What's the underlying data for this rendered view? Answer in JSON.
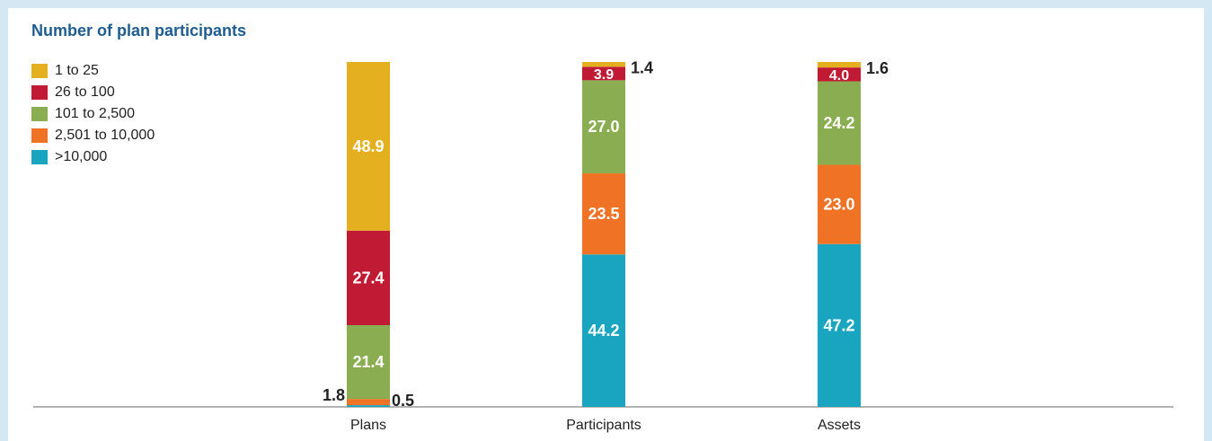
{
  "chart_data": {
    "type": "bar",
    "stacked": true,
    "title": "Number of plan participants",
    "categories": [
      "Plans",
      "Participants",
      "Assets"
    ],
    "ylim": [
      0,
      100
    ],
    "legend_position": "top-left",
    "grid": false,
    "series": [
      {
        "name": ">10,000",
        "color": "#19a5bf",
        "values": [
          0.5,
          44.2,
          47.2
        ],
        "labels": [
          "0.5",
          "44.2",
          "47.2"
        ]
      },
      {
        "name": "2,501 to 10,000",
        "color": "#f07225",
        "values": [
          1.8,
          23.5,
          23.0
        ],
        "labels": [
          "1.8",
          "23.5",
          "23.0"
        ]
      },
      {
        "name": "101 to 2,500",
        "color": "#89ad50",
        "values": [
          21.4,
          27.0,
          24.2
        ],
        "labels": [
          "21.4",
          "27.0",
          "24.2"
        ]
      },
      {
        "name": "26 to 100",
        "color": "#c01a35",
        "values": [
          27.4,
          3.9,
          4.0
        ],
        "labels": [
          "27.4",
          "3.9",
          "4.0"
        ]
      },
      {
        "name": "1 to 25",
        "color": "#e4b020",
        "values": [
          48.9,
          1.4,
          1.6
        ],
        "labels": [
          "48.9",
          "1.4",
          "1.6"
        ]
      }
    ]
  },
  "legend_items": [
    {
      "label": "1 to 25",
      "color": "#e4b020"
    },
    {
      "label": "26 to 100",
      "color": "#c01a35"
    },
    {
      "label": "101 to 2,500",
      "color": "#89ad50"
    },
    {
      "label": "2,501 to 10,000",
      "color": "#f07225"
    },
    {
      "label": ">10,000",
      "color": "#19a5bf"
    }
  ],
  "colors": {
    "title": "#1f5c8f",
    "axis": "#666666",
    "background_border": "#d4e8f4"
  }
}
